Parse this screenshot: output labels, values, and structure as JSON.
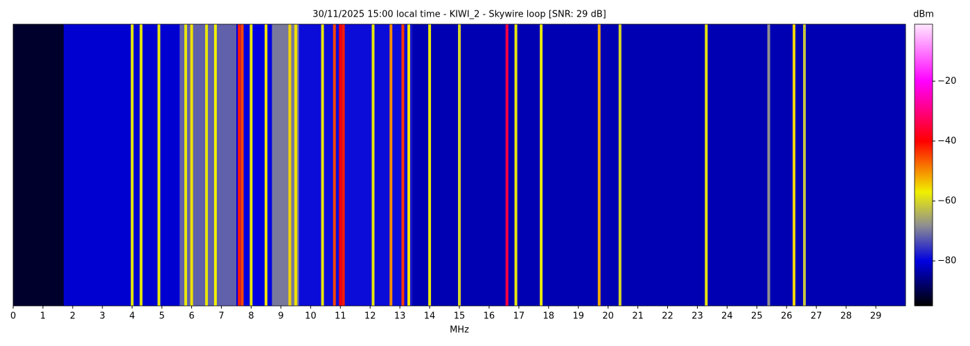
{
  "chart_data": {
    "type": "waterfall",
    "title": "30/11/2025 15:00 local time - KIWI_2 - Skywire loop [SNR: 29 dB]",
    "xlabel": "MHz",
    "xlim": [
      0,
      30
    ],
    "xticks": [
      0,
      1,
      2,
      3,
      4,
      5,
      6,
      7,
      8,
      9,
      10,
      11,
      12,
      13,
      14,
      15,
      16,
      17,
      18,
      19,
      20,
      21,
      22,
      23,
      24,
      25,
      26,
      27,
      28,
      29
    ],
    "colorbar": {
      "label": "dBm",
      "lim": [
        -95,
        -1
      ],
      "ticks": [
        {
          "value": -20,
          "label": "−20"
        },
        {
          "value": -40,
          "label": "−40"
        },
        {
          "value": -60,
          "label": "−60"
        },
        {
          "value": -80,
          "label": "−80"
        }
      ]
    },
    "colormap": {
      "values": [
        -95,
        -80,
        -68,
        -57,
        -40,
        -20,
        -1
      ],
      "colors": [
        "#000000",
        "#0000e0",
        "#909090",
        "#f0f000",
        "#ff0000",
        "#ff00ff",
        "#ffe8ff"
      ]
    },
    "bands": {
      "bins": [
        0,
        1.7,
        5.6,
        7.5,
        8.7,
        9.6,
        13.4,
        30
      ],
      "values": [
        -92,
        -81,
        -72,
        -80,
        -70,
        -79,
        -83
      ]
    },
    "signals": {
      "x": [
        4.0,
        4.3,
        4.9,
        5.8,
        6.0,
        6.5,
        6.8,
        7.6,
        7.7,
        8.0,
        8.5,
        9.3,
        9.5,
        10.4,
        10.8,
        11.0,
        11.1,
        12.1,
        12.7,
        13.1,
        13.3,
        14.0,
        15.0,
        16.6,
        16.9,
        17.75,
        19.7,
        20.4,
        23.3,
        25.4,
        26.25,
        26.6
      ],
      "values": [
        -58,
        -58,
        -58,
        -58,
        -56,
        -58,
        -57,
        -42,
        -45,
        -58,
        -56,
        -55,
        -56,
        -58,
        -45,
        -40,
        -42,
        -58,
        -50,
        -44,
        -56,
        -58,
        -60,
        -35,
        -58,
        -58,
        -52,
        -60,
        -58,
        -68,
        -55,
        -62
      ]
    }
  }
}
